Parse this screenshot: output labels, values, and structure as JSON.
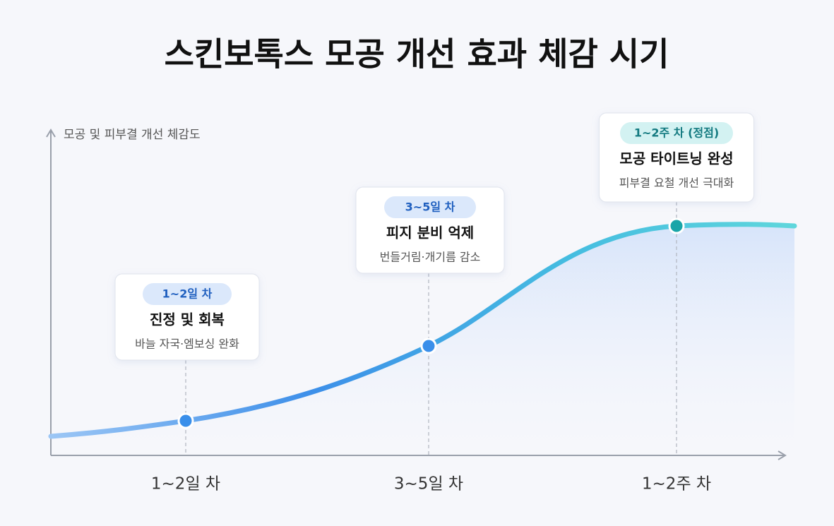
{
  "title": "스킨보톡스 모공 개선 효과 체감 시기",
  "y_axis_label": "모공 및 피부결 개선 체감도",
  "stages": [
    {
      "x_label": "1~2일 차",
      "badge": "1~2일 차",
      "heading": "진정 및 회복",
      "description": "바늘 자국·엠보싱 완화"
    },
    {
      "x_label": "3~5일 차",
      "badge": "3~5일 차",
      "heading": "피지 분비 억제",
      "description": "번들거림·개기름 감소"
    },
    {
      "x_label": "1~2주 차",
      "badge": "1~2주 차 (정점)",
      "heading": "모공 타이트닝 완성",
      "description": "피부결 요철 개선 극대화"
    }
  ]
}
